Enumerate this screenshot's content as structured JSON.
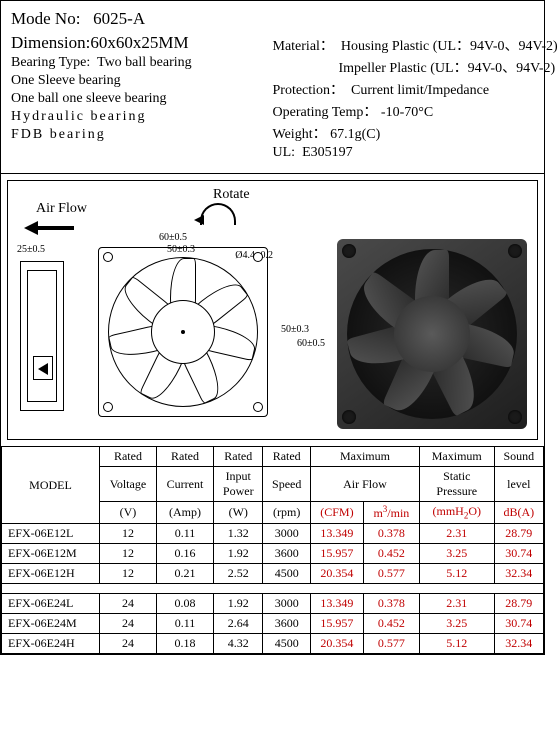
{
  "header": {
    "mode_label": "Mode No:",
    "mode_value": "6025-A",
    "dimension_label": "Dimension:",
    "dimension_value": "60x60x25MM",
    "bearing_label": "Bearing Type:",
    "bearing_main": "Two ball bearing",
    "bearing_opts": [
      "One Sleeve bearing",
      "One ball one sleeve bearing",
      "Hydraulic    bearing",
      "FDB    bearing"
    ],
    "material_label": "Material：",
    "material_line1": "Housing Plastic (UL：94V-0、94V-2)",
    "material_line2": "Impeller Plastic (UL：94V-0、94V-2)",
    "protection_label": "Protection：",
    "protection_value": "Current limit/Impedance",
    "optemp_label": "Operating Temp：",
    "optemp_value": "-10-70°C",
    "weight_label": "Weight：",
    "weight_value": "67.1g(C)",
    "ul_label": "UL:",
    "ul_value": "E305197"
  },
  "diagram": {
    "airflow": "Air Flow",
    "rotate": "Rotate",
    "side_dim": "25±0.5",
    "top_dim1": "60±0.5",
    "top_dim2": "50±0.3",
    "right_dim1": "50±0.3",
    "right_dim2": "60±0.5",
    "hole_dim": "Ø4.4±0.2"
  },
  "table": {
    "head": {
      "model": "MODEL",
      "rv": "Rated Voltage",
      "rc": "Rated Current",
      "rp": "Rated Input Power",
      "rs": "Rated Speed",
      "maf": "Maximum Air Flow",
      "msp": "Maximum Static Pressure",
      "sl": "Sound level",
      "u_v": "(V)",
      "u_a": "(Amp)",
      "u_w": "(W)",
      "u_rpm": "(rpm)",
      "u_cfm": "(CFM)",
      "u_m3": "m³/min",
      "u_mmh2o": "(mmH₂O)",
      "u_db": "dB(A)"
    },
    "rows12": [
      {
        "model": "EFX-06E12L",
        "v": "12",
        "a": "0.11",
        "w": "1.32",
        "rpm": "3000",
        "cfm": "13.349",
        "m3": "0.378",
        "mm": "2.31",
        "db": "28.79"
      },
      {
        "model": "EFX-06E12M",
        "v": "12",
        "a": "0.16",
        "w": "1.92",
        "rpm": "3600",
        "cfm": "15.957",
        "m3": "0.452",
        "mm": "3.25",
        "db": "30.74"
      },
      {
        "model": "EFX-06E12H",
        "v": "12",
        "a": "0.21",
        "w": "2.52",
        "rpm": "4500",
        "cfm": "20.354",
        "m3": "0.577",
        "mm": "5.12",
        "db": "32.34"
      }
    ],
    "rows24": [
      {
        "model": "EFX-06E24L",
        "v": "24",
        "a": "0.08",
        "w": "1.92",
        "rpm": "3000",
        "cfm": "13.349",
        "m3": "0.378",
        "mm": "2.31",
        "db": "28.79"
      },
      {
        "model": "EFX-06E24M",
        "v": "24",
        "a": "0.11",
        "w": "2.64",
        "rpm": "3600",
        "cfm": "15.957",
        "m3": "0.452",
        "mm": "3.25",
        "db": "30.74"
      },
      {
        "model": "EFX-06E24H",
        "v": "24",
        "a": "0.18",
        "w": "4.32",
        "rpm": "4500",
        "cfm": "20.354",
        "m3": "0.577",
        "mm": "5.12",
        "db": "32.34"
      }
    ]
  }
}
